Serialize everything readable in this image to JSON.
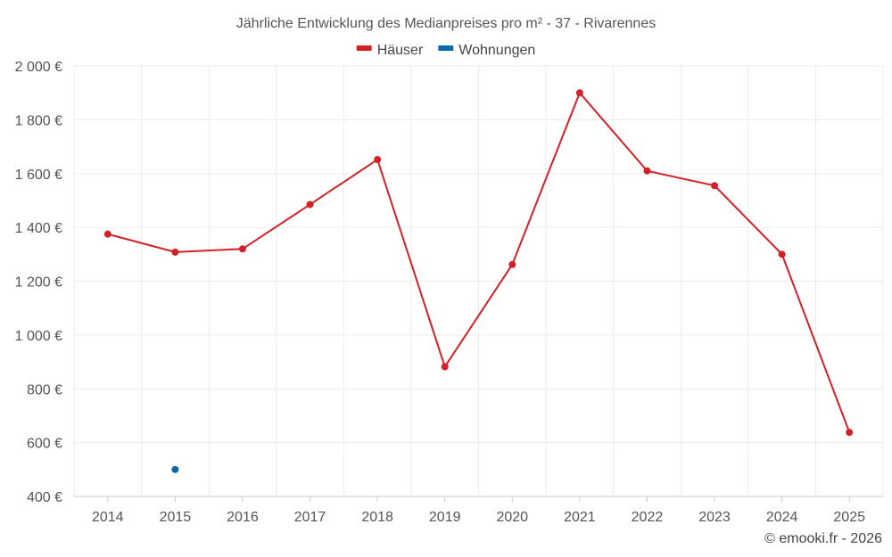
{
  "chart_data": {
    "type": "line",
    "title": "Jährliche Entwicklung des Medianpreises pro m² - 37 - Rivarennes",
    "categories": [
      "2014",
      "2015",
      "2016",
      "2017",
      "2018",
      "2019",
      "2020",
      "2021",
      "2022",
      "2023",
      "2024",
      "2025"
    ],
    "series": [
      {
        "name": "Häuser",
        "color": "#d32027",
        "values": [
          1375,
          1308,
          1320,
          1485,
          1652,
          882,
          1262,
          1900,
          1610,
          1555,
          1300,
          638
        ]
      },
      {
        "name": "Wohnungen",
        "color": "#0a6aa8",
        "values": [
          null,
          500,
          null,
          null,
          null,
          null,
          null,
          null,
          null,
          null,
          null,
          null
        ]
      }
    ],
    "ylim": [
      400,
      2000
    ],
    "y_ticks": [
      400,
      600,
      800,
      1000,
      1200,
      1400,
      1600,
      1800,
      2000
    ],
    "y_tick_labels": [
      "400 €",
      "600 €",
      "800 €",
      "1 000 €",
      "1 200 €",
      "1 400 €",
      "1 600 €",
      "1 800 €",
      "2 000 €"
    ],
    "grid": true,
    "legend": "top-center",
    "credit": "© emooki.fr - 2026"
  }
}
